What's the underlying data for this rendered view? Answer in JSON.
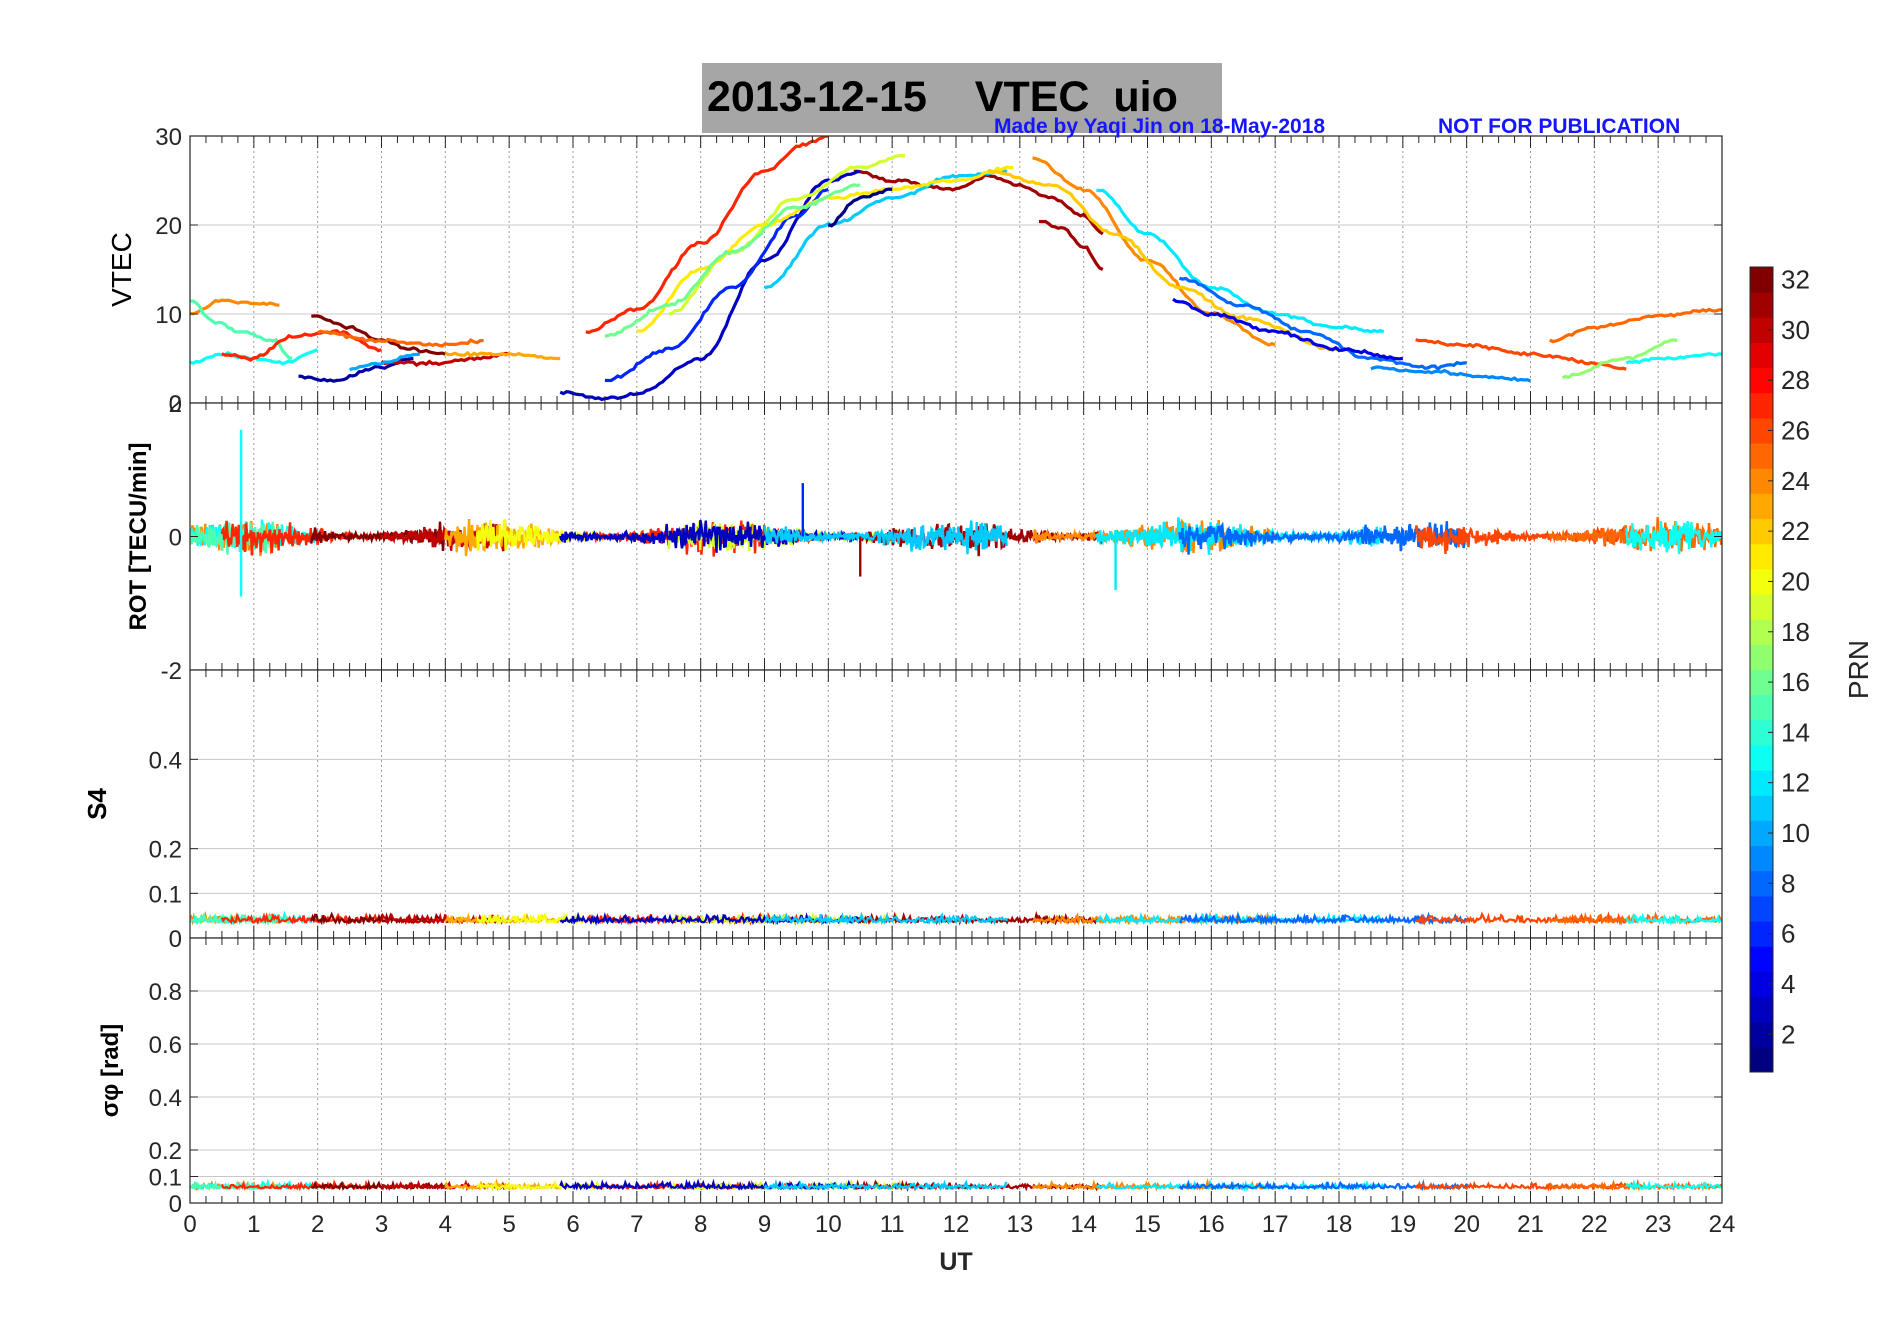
{
  "figure": {
    "title_date": "2013-12-15",
    "title_quantity": "VTEC",
    "title_station": "uio",
    "credit": "Made by Yaqi Jin on 18-May-2018",
    "notice": "NOT FOR PUBLICATION",
    "colors": {
      "title_bg": "#a6a6a6",
      "credit_text": "#1515ff",
      "grid": "#c8c8c8"
    }
  },
  "chart_data": [
    {
      "type": "line",
      "panel": "vtec",
      "ylabel": "VTEC",
      "ylim": [
        0,
        30
      ],
      "yticks": [
        "30",
        "20",
        "10",
        "0"
      ],
      "xlim": [
        0,
        24
      ],
      "series": [
        {
          "prn": 32,
          "x": [
            1.9,
            2.5,
            3.0,
            3.5,
            4.0
          ],
          "y": [
            9.8,
            8.5,
            7.0,
            6.0,
            5.5
          ]
        },
        {
          "prn": 27,
          "x": [
            6.2,
            7.0,
            8.0,
            9.0,
            9.6,
            10.0
          ],
          "y": [
            8.0,
            10.5,
            18.0,
            26.0,
            29.0,
            30.0
          ]
        },
        {
          "prn": 31,
          "x": [
            10.4,
            11.0,
            12.0,
            12.5,
            13.0,
            13.5,
            14.0,
            14.3
          ],
          "y": [
            26.0,
            25.0,
            24.0,
            25.5,
            24.5,
            23.0,
            21.0,
            19.0
          ]
        },
        {
          "prn": 31,
          "x": [
            13.3,
            13.7,
            14.0,
            14.3
          ],
          "y": [
            20.5,
            19.5,
            17.5,
            15.0
          ]
        },
        {
          "prn": 3,
          "x": [
            5.8,
            6.5,
            7.0,
            8.0,
            9.0,
            10.0,
            10.5
          ],
          "y": [
            1.2,
            0.5,
            1.0,
            5.0,
            16.0,
            25.0,
            26.0
          ]
        },
        {
          "prn": 6,
          "x": [
            6.5,
            7.5,
            8.5,
            9.5,
            10.0
          ],
          "y": [
            2.5,
            6.0,
            13.0,
            21.0,
            24.0
          ]
        },
        {
          "prn": 11,
          "x": [
            9.0,
            10.0,
            11.0,
            12.0,
            12.8
          ],
          "y": [
            13.0,
            20.0,
            23.0,
            25.5,
            26.0
          ]
        },
        {
          "prn": 19,
          "x": [
            7.5,
            8.5,
            9.5,
            10.5,
            11.2
          ],
          "y": [
            10.0,
            17.0,
            23.0,
            26.5,
            27.8
          ]
        },
        {
          "prn": 21,
          "x": [
            7.0,
            8.0,
            9.0,
            10.0,
            11.0,
            12.0,
            12.9
          ],
          "y": [
            8.0,
            15.0,
            20.0,
            23.0,
            24.0,
            25.0,
            26.5
          ]
        },
        {
          "prn": 16,
          "x": [
            6.5,
            7.5,
            8.5,
            9.5,
            10.5
          ],
          "y": [
            7.5,
            11.0,
            17.0,
            22.0,
            24.5
          ]
        },
        {
          "prn": 24,
          "x": [
            13.2,
            14.0,
            15.0,
            16.0,
            17.0
          ],
          "y": [
            27.5,
            24.0,
            16.0,
            10.0,
            6.5
          ]
        },
        {
          "prn": 22,
          "x": [
            12.5,
            13.5,
            14.5,
            15.5,
            16.5,
            18.0
          ],
          "y": [
            26.0,
            24.5,
            19.0,
            13.0,
            9.5,
            6.0
          ]
        },
        {
          "prn": 12,
          "x": [
            14.2,
            15.0,
            16.0,
            17.0,
            18.0,
            18.7
          ],
          "y": [
            24.0,
            19.0,
            13.0,
            10.0,
            8.5,
            8.0
          ]
        },
        {
          "prn": 8,
          "x": [
            15.5,
            16.5,
            17.5,
            18.5,
            19.5,
            20.0
          ],
          "y": [
            14.0,
            11.0,
            8.0,
            5.0,
            4.0,
            4.5
          ]
        },
        {
          "prn": 4,
          "x": [
            15.4,
            16.0,
            17.0,
            18.0,
            19.0
          ],
          "y": [
            11.5,
            10.0,
            8.0,
            6.0,
            5.0
          ]
        },
        {
          "prn": 26,
          "x": [
            19.2,
            20.0,
            21.0,
            22.0,
            22.5
          ],
          "y": [
            7.0,
            6.5,
            5.5,
            4.5,
            3.8
          ]
        },
        {
          "prn": 25,
          "x": [
            21.3,
            22.0,
            23.0,
            24.0
          ],
          "y": [
            7.0,
            8.5,
            9.8,
            10.5
          ]
        },
        {
          "prn": 17,
          "x": [
            21.5,
            22.5,
            23.3
          ],
          "y": [
            3.0,
            5.0,
            7.0
          ]
        },
        {
          "prn": 13,
          "x": [
            22.5,
            23.0,
            24.0
          ],
          "y": [
            4.5,
            5.0,
            5.5
          ]
        },
        {
          "prn": 9,
          "x": [
            18.5,
            19.5,
            20.5,
            21.0
          ],
          "y": [
            4.0,
            3.5,
            2.8,
            2.5
          ]
        },
        {
          "prn": 24,
          "x": [
            0.0,
            0.5,
            1.0,
            1.4
          ],
          "y": [
            10.0,
            11.5,
            11.2,
            11.0
          ]
        },
        {
          "prn": 13,
          "x": [
            0.0,
            0.5,
            1.0,
            1.5,
            2.0
          ],
          "y": [
            4.5,
            5.5,
            5.0,
            4.5,
            6.0
          ]
        },
        {
          "prn": 15,
          "x": [
            0.0,
            0.4,
            0.8,
            1.3,
            1.6
          ],
          "y": [
            11.5,
            9.0,
            8.0,
            7.0,
            5.0
          ]
        },
        {
          "prn": 27,
          "x": [
            0.5,
            1.0,
            1.6,
            2.3,
            3.0
          ],
          "y": [
            5.5,
            5.0,
            7.5,
            8.0,
            6.0
          ]
        },
        {
          "prn": 2,
          "x": [
            1.7,
            2.2,
            3.0,
            3.5
          ],
          "y": [
            3.0,
            2.5,
            4.0,
            5.0
          ]
        },
        {
          "prn": 25,
          "x": [
            2.0,
            3.0,
            4.0,
            4.6
          ],
          "y": [
            8.0,
            7.0,
            6.5,
            7.0
          ]
        },
        {
          "prn": 30,
          "x": [
            3.0,
            3.8,
            4.5,
            5.0
          ],
          "y": [
            4.5,
            4.5,
            5.0,
            5.5
          ]
        },
        {
          "prn": 23,
          "x": [
            4.0,
            5.0,
            5.8
          ],
          "y": [
            5.5,
            5.5,
            5.0
          ]
        },
        {
          "prn": 10,
          "x": [
            2.5,
            3.0,
            3.6
          ],
          "y": [
            3.8,
            4.5,
            5.5
          ]
        },
        {
          "prn": 1,
          "x": [
            10.0,
            10.5,
            11.0
          ],
          "y": [
            20.0,
            23.0,
            24.0
          ]
        }
      ]
    },
    {
      "type": "line",
      "panel": "rot",
      "ylabel": "ROT [TECU/min]",
      "ylim": [
        -2,
        2
      ],
      "yticks": [
        "2",
        "0",
        "-2"
      ],
      "xlim": [
        0,
        24
      ],
      "note": "noisy multi-PRN traces; one series per PRN interval, x in UT hours, y in TECU/min",
      "segments": [
        {
          "prn": 24,
          "x0": 0.0,
          "x1": 1.4
        },
        {
          "prn": 13,
          "x0": 0.0,
          "x1": 2.0
        },
        {
          "prn": 15,
          "x0": 0.0,
          "x1": 1.6
        },
        {
          "prn": 27,
          "x0": 0.5,
          "x1": 3.0
        },
        {
          "prn": 32,
          "x0": 1.9,
          "x1": 4.0
        },
        {
          "prn": 30,
          "x0": 3.0,
          "x1": 5.0
        },
        {
          "prn": 23,
          "x0": 4.0,
          "x1": 5.8
        },
        {
          "prn": 20,
          "x0": 4.5,
          "x1": 6.5
        },
        {
          "prn": 27,
          "x0": 6.2,
          "x1": 10.0
        },
        {
          "prn": 19,
          "x0": 7.5,
          "x1": 11.2
        },
        {
          "prn": 3,
          "x0": 5.8,
          "x1": 10.5
        },
        {
          "prn": 31,
          "x0": 10.4,
          "x1": 14.3
        },
        {
          "prn": 11,
          "x0": 9.0,
          "x1": 12.8
        },
        {
          "prn": 24,
          "x0": 13.2,
          "x1": 17.0
        },
        {
          "prn": 12,
          "x0": 14.2,
          "x1": 18.7
        },
        {
          "prn": 8,
          "x0": 15.5,
          "x1": 20.0
        },
        {
          "prn": 26,
          "x0": 19.2,
          "x1": 22.5
        },
        {
          "prn": 25,
          "x0": 21.3,
          "x1": 24.0
        },
        {
          "prn": 13,
          "x0": 22.5,
          "x1": 24.0
        }
      ],
      "spikes": [
        {
          "prn": 13,
          "x": 0.8,
          "y": 1.6
        },
        {
          "prn": 13,
          "x": 0.8,
          "y": -0.9
        },
        {
          "prn": 6,
          "x": 9.6,
          "y": 0.8
        },
        {
          "prn": 31,
          "x": 10.5,
          "y": -0.6
        },
        {
          "prn": 12,
          "x": 14.5,
          "y": -0.8
        }
      ]
    },
    {
      "type": "line",
      "panel": "s4",
      "ylabel": "S4",
      "ylim": [
        0,
        0.6
      ],
      "yticks": [
        "0.4",
        "0.2",
        "0.1",
        "0"
      ],
      "xlim": [
        0,
        24
      ],
      "baseline": 0.04,
      "note": "all PRNs near 0.03-0.07"
    },
    {
      "type": "line",
      "panel": "sigma_phi",
      "ylabel": "σφ [rad]",
      "ylim": [
        0,
        1
      ],
      "yticks": [
        "0.8",
        "0.6",
        "0.4",
        "0.2",
        "0.1",
        "0"
      ],
      "xlim": [
        0,
        24
      ],
      "baseline": 0.06,
      "note": "all PRNs near 0.04-0.12"
    }
  ],
  "x_axis": {
    "label": "UT",
    "ticks": [
      "0",
      "1",
      "2",
      "3",
      "4",
      "5",
      "6",
      "7",
      "8",
      "9",
      "10",
      "11",
      "12",
      "13",
      "14",
      "15",
      "16",
      "17",
      "18",
      "19",
      "20",
      "21",
      "22",
      "23",
      "24"
    ]
  },
  "colorbar": {
    "label": "PRN",
    "min": 1,
    "max": 32,
    "ticks": [
      "32",
      "30",
      "28",
      "26",
      "24",
      "22",
      "20",
      "18",
      "16",
      "14",
      "12",
      "10",
      "8",
      "6",
      "4",
      "2"
    ]
  }
}
